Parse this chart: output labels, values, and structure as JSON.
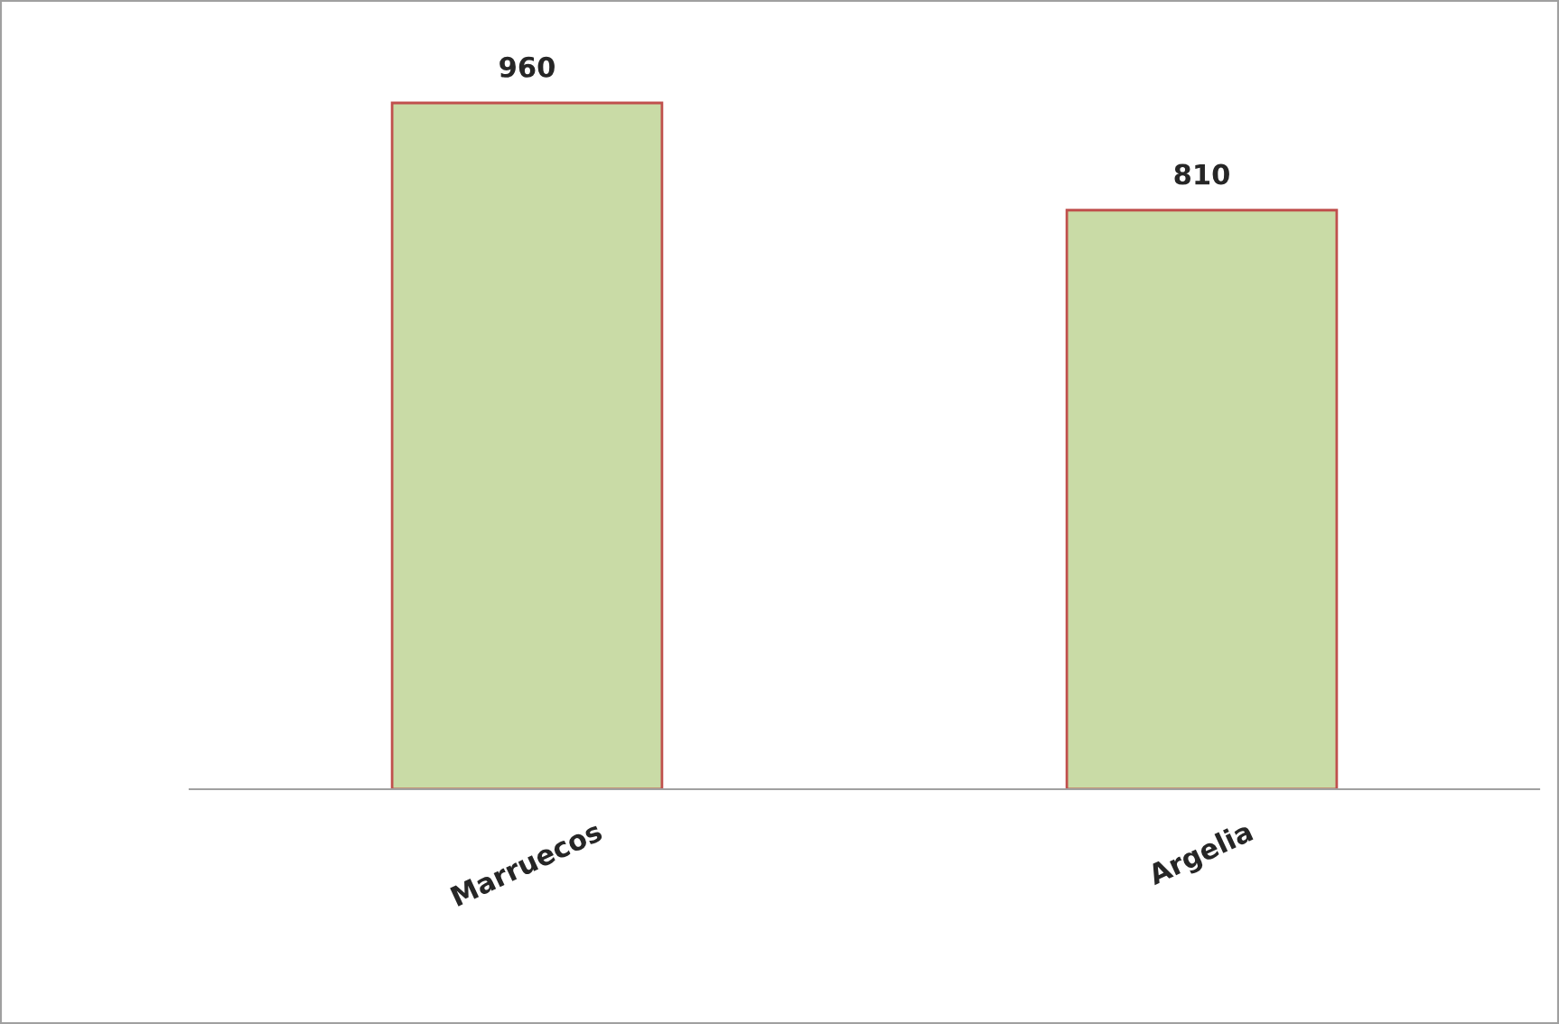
{
  "chart_data": {
    "type": "bar",
    "categories": [
      "Marruecos",
      "Argelia"
    ],
    "values": [
      960,
      810
    ],
    "color": "#c9dba6",
    "data_labels": true,
    "tick_labels": "x",
    "grid": false,
    "legend": false
  }
}
